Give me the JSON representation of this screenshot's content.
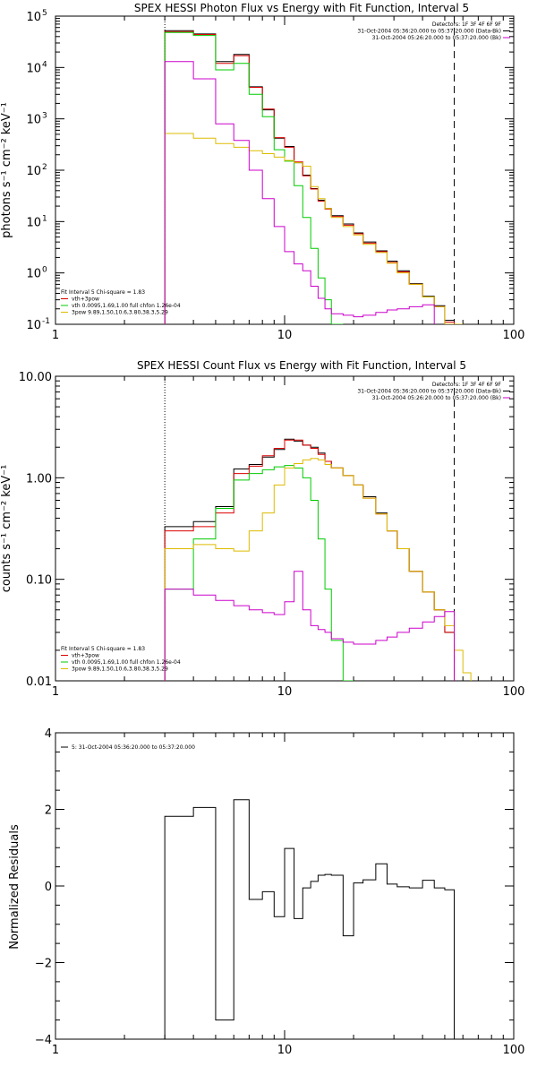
{
  "chart_data": [
    {
      "id": "photon",
      "type": "line",
      "title": "SPEX HESSI Photon Flux vs Energy with Fit Function, Interval 5",
      "xlabel": "",
      "ylabel": "photons s⁻¹ cm⁻² keV⁻¹",
      "xscale": "log",
      "yscale": "log",
      "xlim": [
        1,
        100
      ],
      "ylim": [
        0.1,
        100000
      ],
      "xticks": [
        {
          "value": 1,
          "label": "1"
        },
        {
          "value": 10,
          "label": "10"
        },
        {
          "value": 100,
          "label": "100"
        }
      ],
      "yticks": [
        {
          "value": 0.1,
          "label": "10",
          "exp": "-1"
        },
        {
          "value": 1,
          "label": "10",
          "exp": "0"
        },
        {
          "value": 10,
          "label": "10",
          "exp": "1"
        },
        {
          "value": 100,
          "label": "10",
          "exp": "2"
        },
        {
          "value": 1000,
          "label": "10",
          "exp": "3"
        },
        {
          "value": 10000,
          "label": "10",
          "exp": "4"
        },
        {
          "value": 100000,
          "label": "10",
          "exp": "5"
        }
      ],
      "vlines": [
        {
          "x": 3,
          "style": "dotted"
        },
        {
          "x": 55,
          "style": "dashed"
        }
      ],
      "legend_right": {
        "position": "top-right",
        "lines": [
          {
            "text": "Detectors: 1F 3F 4F 6F 9F",
            "color": ""
          },
          {
            "text": "31-Oct-2004 05:36:20.000 to 05:37:20.000 (Data-Bk)",
            "color": "#000000"
          },
          {
            "text": "31-Oct-2004 05:26:20.000 to 05:37:20.000 (Bk)",
            "color": "#cc00cc"
          }
        ]
      },
      "legend_left": {
        "position": "bottom-left",
        "lines": [
          {
            "text": "Fit Interval 5   Chi-square = 1.83",
            "color": ""
          },
          {
            "text": "vth+3pow",
            "color": "#dd0000"
          },
          {
            "text": "vth 0.0095,1.69,1.00  full chfon 1.26e-04",
            "color": "#00cc00"
          },
          {
            "text": "3pow 9.89,1.50,10.6,3.80,38.3,5.29",
            "color": "#ddbb00"
          }
        ]
      },
      "edges": [
        3,
        4,
        5,
        6,
        7,
        8,
        9,
        10,
        11,
        12,
        13,
        14,
        15,
        16,
        18,
        20,
        22,
        25,
        28,
        31,
        35,
        40,
        45,
        50,
        55,
        60,
        65
      ],
      "series": [
        {
          "name": "Data-Bk",
          "color": "#000000",
          "values": [
            52000,
            45000,
            13000,
            18000,
            4200,
            1500,
            420,
            290,
            140,
            80,
            44,
            26,
            18,
            13,
            9,
            6,
            4,
            2.7,
            1.7,
            1.1,
            0.62,
            0.35,
            0.23,
            0.12
          ]
        },
        {
          "name": "vth+3pow",
          "color": "#dd0000",
          "values": [
            50000,
            44000,
            12000,
            17000,
            4100,
            1550,
            430,
            280,
            145,
            78,
            43,
            25,
            17.5,
            12.5,
            8.5,
            5.8,
            3.8,
            2.6,
            1.6,
            1.05,
            0.6,
            0.34,
            0.22,
            0.11
          ]
        },
        {
          "name": "vth",
          "color": "#00cc00",
          "values": [
            48000,
            42000,
            9000,
            12000,
            3000,
            1100,
            250,
            150,
            50,
            12,
            3,
            0.8,
            0.3,
            0.08
          ]
        },
        {
          "name": "3pow",
          "color": "#ddbb00",
          "values": [
            520,
            420,
            330,
            280,
            240,
            210,
            180,
            155,
            140,
            120,
            48,
            28,
            18,
            12,
            8,
            5.5,
            3.6,
            2.5,
            1.55,
            1.0,
            0.6,
            0.34,
            0.22,
            0.1,
            0.05
          ]
        },
        {
          "name": "Bk",
          "color": "#cc00cc",
          "values": [
            13000,
            6000,
            800,
            380,
            100,
            28,
            8,
            2.6,
            1.5,
            1.1,
            0.55,
            0.32,
            0.2,
            0.16,
            0.15,
            0.14,
            0.15,
            0.17,
            0.19,
            0.2,
            0.22,
            0.24
          ]
        }
      ]
    },
    {
      "id": "count",
      "type": "line",
      "title": "SPEX HESSI Count Flux vs Energy with Fit Function, Interval 5",
      "xlabel": "",
      "ylabel": "counts s⁻¹ cm⁻² keV⁻¹",
      "xscale": "log",
      "yscale": "log",
      "xlim": [
        1,
        100
      ],
      "ylim": [
        0.01,
        10
      ],
      "xticks": [
        {
          "value": 1,
          "label": "1"
        },
        {
          "value": 10,
          "label": "10"
        },
        {
          "value": 100,
          "label": "100"
        }
      ],
      "yticks": [
        {
          "value": 0.01,
          "label": "0.01"
        },
        {
          "value": 0.1,
          "label": "0.10"
        },
        {
          "value": 1,
          "label": "1.00"
        },
        {
          "value": 10,
          "label": "10.00"
        }
      ],
      "vlines": [
        {
          "x": 3,
          "style": "dotted"
        },
        {
          "x": 55,
          "style": "dashed"
        }
      ],
      "legend_right": {
        "position": "top-right",
        "lines": [
          {
            "text": "Detectors: 1F 3F 4F 6F 9F",
            "color": ""
          },
          {
            "text": "31-Oct-2004 05:36:20.000 to 05:37:20.000 (Data-Bk)",
            "color": "#000000"
          },
          {
            "text": "31-Oct-2004 05:26:20.000 to 05:37:20.000 (Bk)",
            "color": "#cc00cc"
          }
        ]
      },
      "legend_left": {
        "position": "bottom-left",
        "lines": [
          {
            "text": "Fit Interval 5   Chi-square = 1.83",
            "color": ""
          },
          {
            "text": "vth+3pow",
            "color": "#dd0000"
          },
          {
            "text": "vth 0.0095,1.69,1.00  full chfon 1.26e-04",
            "color": "#00cc00"
          },
          {
            "text": "3pow 9.89,1.50,10.6,3.80,38.3,5.29",
            "color": "#ddbb00"
          }
        ]
      },
      "edges": [
        3,
        4,
        5,
        6,
        7,
        8,
        9,
        10,
        11,
        12,
        13,
        14,
        15,
        16,
        18,
        20,
        22,
        25,
        28,
        31,
        35,
        40,
        45,
        50,
        55,
        60,
        65
      ],
      "series": [
        {
          "name": "Data-Bk",
          "color": "#000000",
          "values": [
            0.33,
            0.37,
            0.52,
            1.22,
            1.35,
            1.6,
            1.9,
            2.4,
            2.3,
            2.1,
            2.0,
            1.75,
            1.45,
            1.25,
            1.05,
            0.85,
            0.65,
            0.45,
            0.3,
            0.2,
            0.12,
            0.075,
            0.05,
            0.03
          ]
        },
        {
          "name": "vth+3pow",
          "color": "#dd0000",
          "values": [
            0.3,
            0.33,
            0.45,
            1.1,
            1.3,
            1.65,
            1.95,
            2.35,
            2.35,
            2.1,
            1.95,
            1.7,
            1.45,
            1.25,
            1.05,
            0.85,
            0.63,
            0.44,
            0.3,
            0.2,
            0.12,
            0.075,
            0.05,
            0.03
          ]
        },
        {
          "name": "vth",
          "color": "#00cc00",
          "values": [
            0.08,
            0.25,
            0.5,
            0.95,
            1.1,
            1.2,
            1.28,
            1.32,
            1.25,
            1.0,
            0.6,
            0.25,
            0.08,
            0.025,
            0.008
          ]
        },
        {
          "name": "3pow",
          "color": "#ddbb00",
          "values": [
            0.2,
            0.22,
            0.2,
            0.19,
            0.3,
            0.45,
            0.85,
            1.25,
            1.38,
            1.5,
            1.55,
            1.5,
            1.35,
            1.25,
            1.05,
            0.85,
            0.63,
            0.44,
            0.3,
            0.2,
            0.12,
            0.075,
            0.05,
            0.035,
            0.02,
            0.012
          ]
        },
        {
          "name": "Bk",
          "color": "#cc00cc",
          "values": [
            0.08,
            0.07,
            0.062,
            0.055,
            0.05,
            0.047,
            0.045,
            0.06,
            0.12,
            0.05,
            0.035,
            0.032,
            0.03,
            0.026,
            0.024,
            0.023,
            0.023,
            0.025,
            0.027,
            0.03,
            0.033,
            0.038,
            0.043,
            0.048
          ]
        }
      ]
    },
    {
      "id": "resid",
      "type": "line",
      "title": "",
      "xlabel": "",
      "ylabel": "Normalized Residuals",
      "xscale": "log",
      "yscale": "linear",
      "xlim": [
        1,
        100
      ],
      "ylim": [
        -4,
        4
      ],
      "xticks": [
        {
          "value": 1,
          "label": "1"
        },
        {
          "value": 10,
          "label": "10"
        },
        {
          "value": 100,
          "label": "100"
        }
      ],
      "yticks": [
        {
          "value": -4,
          "label": "−4"
        },
        {
          "value": -2,
          "label": "−2"
        },
        {
          "value": 0,
          "label": "0"
        },
        {
          "value": 2,
          "label": "2"
        },
        {
          "value": 4,
          "label": "4"
        }
      ],
      "legend_left_top": {
        "position": "top-left",
        "lines": [
          {
            "text": "5: 31-Oct-2004 05:36:20.000 to 05:37:20.000",
            "color": "#000000"
          }
        ]
      },
      "edges": [
        3,
        4,
        5,
        6,
        7,
        8,
        9,
        10,
        11,
        12,
        13,
        14,
        15,
        16,
        18,
        20,
        22,
        25,
        28,
        31,
        35,
        40,
        45,
        50,
        55
      ],
      "series": [
        {
          "name": "5: 31-Oct-2004 05:36:20.000 to 05:37:20.000",
          "color": "#000000",
          "values": [
            1.82,
            2.05,
            -3.5,
            2.25,
            -0.35,
            -0.15,
            -0.8,
            0.98,
            -0.85,
            -0.05,
            0.12,
            0.28,
            0.3,
            0.28,
            -1.3,
            0.08,
            0.16,
            0.58,
            0.05,
            -0.02,
            -0.05,
            0.15,
            -0.05,
            -0.1
          ]
        }
      ]
    }
  ]
}
